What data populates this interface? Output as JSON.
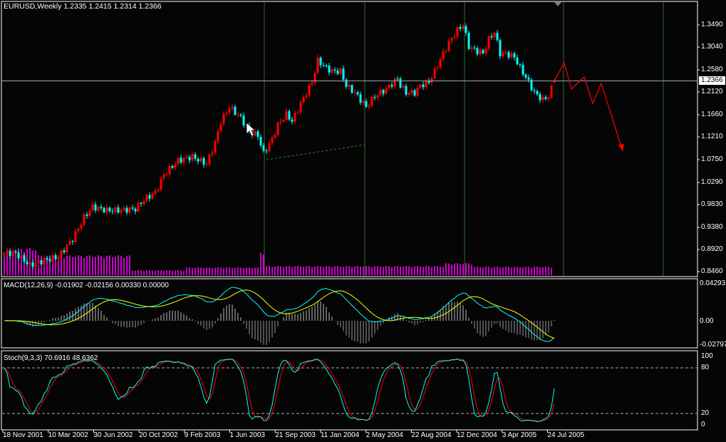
{
  "header": {
    "title": "EURUSD,Weekly  1.2335 1.2415 1.2314 1.2366"
  },
  "price_axis": {
    "labels": [
      "1.3490",
      "1.3040",
      "1.2580",
      "1.2120",
      "1.1660",
      "1.1210",
      "1.0750",
      "1.0290",
      "0.9830",
      "0.9380",
      "0.8920",
      "0.8460"
    ],
    "last_price": "1.2366"
  },
  "macd": {
    "title": "MACD(12,26,9) -0.01902 -0.02156 0.00330 0.00000",
    "axis": [
      "0.04293",
      "0.00",
      "-0.02797"
    ]
  },
  "stoch": {
    "title": "Stoch(9,3,3) 70.6916 48.6362",
    "axis": [
      "100",
      "80",
      "20",
      "0"
    ]
  },
  "time_axis": {
    "labels": [
      "18 Nov 2001",
      "10 Mar 2002",
      "30 Jun 2002",
      "20 Oct 2002",
      "9 Feb 2003",
      "1 Jun 2003",
      "21 Sep 2003",
      "11 Jan 2004",
      "2 May 2004",
      "22 Aug 2004",
      "12 Dec 2004",
      "3 Apr 2005",
      "24 Jul 2005"
    ]
  },
  "colors": {
    "bull": "#ff0000",
    "bear": "#00ffff",
    "volume": "#ff00ff",
    "grid": "#2e6b2e",
    "signal": "#ffff00",
    "forecast": "#ff0000"
  },
  "chart_data": {
    "type": "candlestick",
    "symbol": "EURUSD",
    "timeframe": "Weekly",
    "last_bar": {
      "open": 1.2335,
      "high": 1.2415,
      "low": 1.2314,
      "close": 1.2366
    },
    "ylim": [
      0.846,
      1.349
    ],
    "close_waypoints_week_price": [
      [
        0,
        0.8905
      ],
      [
        4,
        0.8905
      ],
      [
        9,
        0.8662
      ],
      [
        14,
        0.8762
      ],
      [
        19,
        0.8834
      ],
      [
        24,
        0.9192
      ],
      [
        28,
        0.9622
      ],
      [
        31,
        0.9837
      ],
      [
        36,
        0.9765
      ],
      [
        41,
        0.9765
      ],
      [
        46,
        0.9794
      ],
      [
        49,
        0.998
      ],
      [
        53,
        1.0123
      ],
      [
        56,
        1.0481
      ],
      [
        61,
        1.0768
      ],
      [
        66,
        1.084
      ],
      [
        71,
        1.0696
      ],
      [
        74,
        1.1126
      ],
      [
        76,
        1.1556
      ],
      [
        79,
        1.1842
      ],
      [
        83,
        1.1628
      ],
      [
        86,
        1.1341
      ],
      [
        89,
        1.1269
      ],
      [
        91,
        1.0911
      ],
      [
        94,
        1.1198
      ],
      [
        96,
        1.1484
      ],
      [
        99,
        1.1699
      ],
      [
        101,
        1.1556
      ],
      [
        104,
        1.1914
      ],
      [
        108,
        1.2344
      ],
      [
        110,
        1.2774
      ],
      [
        113,
        1.263
      ],
      [
        115,
        1.2559
      ],
      [
        118,
        1.2559
      ],
      [
        120,
        1.2272
      ],
      [
        123,
        1.2129
      ],
      [
        125,
        1.1986
      ],
      [
        127,
        1.1842
      ],
      [
        130,
        1.2057
      ],
      [
        134,
        1.2201
      ],
      [
        138,
        1.2416
      ],
      [
        139,
        1.2272
      ],
      [
        141,
        1.2129
      ],
      [
        144,
        1.2129
      ],
      [
        146,
        1.2272
      ],
      [
        149,
        1.2344
      ],
      [
        151,
        1.2559
      ],
      [
        154,
        1.2917
      ],
      [
        156,
        1.3132
      ],
      [
        159,
        1.339
      ],
      [
        161,
        1.349
      ],
      [
        163,
        1.306
      ],
      [
        165,
        1.2989
      ],
      [
        168,
        1.2917
      ],
      [
        170,
        1.3203
      ],
      [
        172,
        1.3347
      ],
      [
        174,
        1.2917
      ],
      [
        176,
        1.2917
      ],
      [
        179,
        1.2845
      ],
      [
        181,
        1.263
      ],
      [
        184,
        1.2344
      ],
      [
        186,
        1.2129
      ],
      [
        189,
        1.1986
      ],
      [
        191,
        1.2057
      ],
      [
        193,
        1.2366
      ]
    ],
    "volume_segments_week_level": [
      [
        0,
        12,
        38
      ],
      [
        12,
        45,
        28
      ],
      [
        45,
        64,
        7
      ],
      [
        64,
        90,
        11
      ],
      [
        90,
        92,
        33
      ],
      [
        92,
        155,
        13
      ],
      [
        155,
        165,
        17
      ],
      [
        165,
        193,
        12
      ]
    ],
    "forecast_path_week_price": [
      [
        193,
        1.2366
      ],
      [
        196.5,
        1.2731
      ],
      [
        199,
        1.2201
      ],
      [
        203.5,
        1.2444
      ],
      [
        206.5,
        1.1914
      ],
      [
        209.5,
        1.2315
      ],
      [
        217,
        1.0954
      ]
    ],
    "trendline_week_price": [
      [
        92,
        1.0782
      ],
      [
        126.5,
        1.1083
      ]
    ],
    "macd_range": [
      -0.02797,
      0.04293
    ],
    "stoch_levels": [
      20,
      80
    ]
  }
}
